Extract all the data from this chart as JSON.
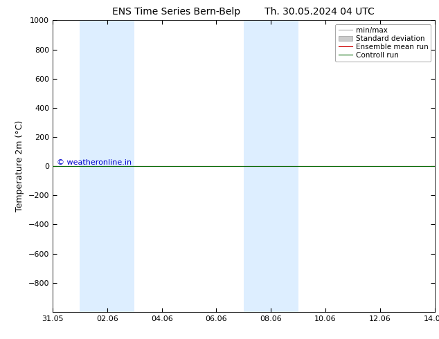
{
  "title_left": "ENS Time Series Bern-Belp",
  "title_right": "Th. 30.05.2024 04 UTC",
  "ylabel": "Temperature 2m (°C)",
  "ylim_top": -1000,
  "ylim_bottom": 1000,
  "yticks": [
    -800,
    -600,
    -400,
    -200,
    0,
    200,
    400,
    600,
    800,
    1000
  ],
  "xtick_labels": [
    "31.05",
    "02.06",
    "04.06",
    "06.06",
    "08.06",
    "10.06",
    "12.06",
    "14.06"
  ],
  "xtick_positions": [
    0,
    2,
    4,
    6,
    8,
    10,
    12,
    14
  ],
  "xlim": [
    0,
    14
  ],
  "shaded_bands": [
    {
      "x_start": 1,
      "x_end": 3
    },
    {
      "x_start": 7,
      "x_end": 9
    }
  ],
  "shade_color": "#ddeeff",
  "control_run_y": 0,
  "ensemble_mean_y": 0,
  "control_run_color": "#006600",
  "ensemble_mean_color": "#cc0000",
  "minmax_color": "#aaaaaa",
  "stddev_color": "#cccccc",
  "watermark_text": "© weatheronline.in",
  "watermark_color": "#0000cc",
  "legend_labels": [
    "min/max",
    "Standard deviation",
    "Ensemble mean run",
    "Controll run"
  ],
  "legend_colors": [
    "#aaaaaa",
    "#cccccc",
    "#cc0000",
    "#006600"
  ],
  "background_color": "#ffffff",
  "title_fontsize": 10,
  "label_fontsize": 9,
  "tick_fontsize": 8,
  "legend_fontsize": 7.5
}
